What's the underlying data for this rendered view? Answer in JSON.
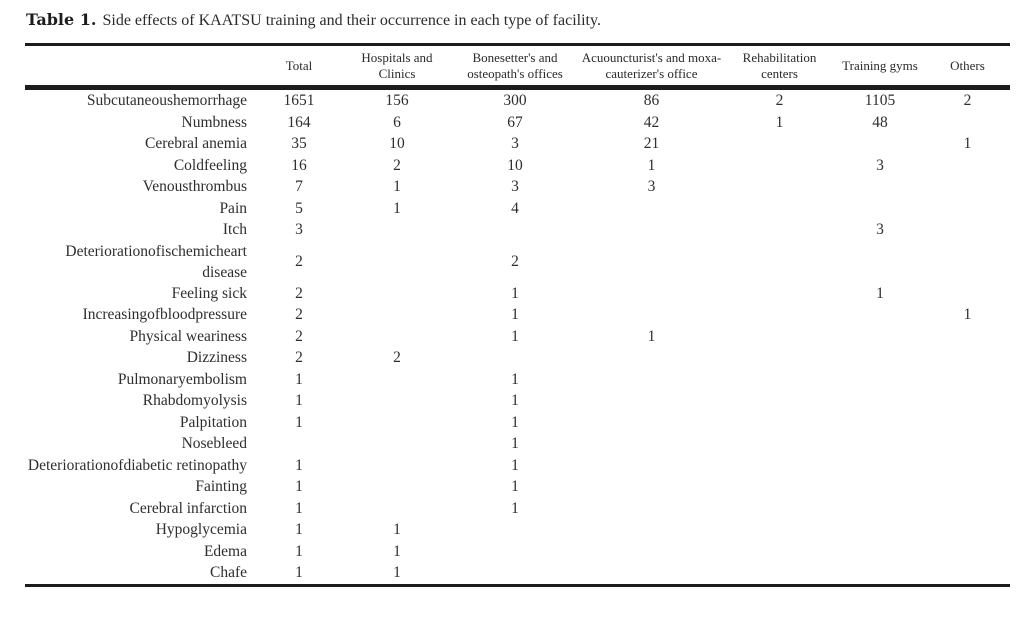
{
  "caption": {
    "label": "Table 1.",
    "text": "Side effects of KAATSU training and their occurrence in each type of facility."
  },
  "table": {
    "columns": [
      {
        "key": "side-effect",
        "label": ""
      },
      {
        "key": "total",
        "label": "Total"
      },
      {
        "key": "hospitals-clinics",
        "label": "Hospitals and Clinics"
      },
      {
        "key": "bonesetters-osteopaths",
        "label": "Bonesetter's and osteopath's offices"
      },
      {
        "key": "acupuncturists-moxa",
        "label": "Acuouncturist's and moxa-cauterizer's office"
      },
      {
        "key": "rehabilitation-centers",
        "label": "Rehabilitation centers"
      },
      {
        "key": "training-gyms",
        "label": "Training gyms"
      },
      {
        "key": "others",
        "label": "Others"
      }
    ],
    "rows": [
      {
        "label": "Subcutaneoushemorrhage",
        "values": [
          "1651",
          "156",
          "300",
          "86",
          "2",
          "1105",
          "2"
        ]
      },
      {
        "label": "Numbness",
        "values": [
          "164",
          "6",
          "67",
          "42",
          "1",
          "48",
          ""
        ]
      },
      {
        "label": "Cerebral anemia",
        "values": [
          "35",
          "10",
          "3",
          "21",
          "",
          "",
          "1"
        ]
      },
      {
        "label": "Coldfeeling",
        "values": [
          "16",
          "2",
          "10",
          "1",
          "",
          "3",
          ""
        ]
      },
      {
        "label": "Venousthrombus",
        "values": [
          "7",
          "1",
          "3",
          "3",
          "",
          "",
          ""
        ]
      },
      {
        "label": "Pain",
        "values": [
          "5",
          "1",
          "4",
          "",
          "",
          "",
          ""
        ]
      },
      {
        "label": "Itch",
        "values": [
          "3",
          "",
          "",
          "",
          "",
          "3",
          ""
        ]
      },
      {
        "label": "Deteriorationofischemicheart disease",
        "values": [
          "2",
          "",
          "2",
          "",
          "",
          "",
          ""
        ]
      },
      {
        "label": "Feeling sick",
        "values": [
          "2",
          "",
          "1",
          "",
          "",
          "1",
          ""
        ]
      },
      {
        "label": "Increasingofbloodpressure",
        "values": [
          "2",
          "",
          "1",
          "",
          "",
          "",
          "1"
        ]
      },
      {
        "label": "Physical weariness",
        "values": [
          "2",
          "",
          "1",
          "1",
          "",
          "",
          ""
        ]
      },
      {
        "label": "Dizziness",
        "values": [
          "2",
          "2",
          "",
          "",
          "",
          "",
          ""
        ]
      },
      {
        "label": "Pulmonaryembolism",
        "values": [
          "1",
          "",
          "1",
          "",
          "",
          "",
          ""
        ]
      },
      {
        "label": "Rhabdomyolysis",
        "values": [
          "1",
          "",
          "1",
          "",
          "",
          "",
          ""
        ]
      },
      {
        "label": "Palpitation",
        "values": [
          "1",
          "",
          "1",
          "",
          "",
          "",
          ""
        ]
      },
      {
        "label": "Nosebleed",
        "values": [
          "",
          "",
          "1",
          "",
          "",
          "",
          ""
        ]
      },
      {
        "label": "Deteriorationofdiabetic retinopathy",
        "values": [
          "1",
          "",
          "1",
          "",
          "",
          "",
          ""
        ]
      },
      {
        "label": "Fainting",
        "values": [
          "1",
          "",
          "1",
          "",
          "",
          "",
          ""
        ]
      },
      {
        "label": "Cerebral infarction",
        "values": [
          "1",
          "",
          "1",
          "",
          "",
          "",
          ""
        ]
      },
      {
        "label": "Hypoglycemia",
        "values": [
          "1",
          "1",
          "",
          "",
          "",
          "",
          ""
        ]
      },
      {
        "label": "Edema",
        "values": [
          "1",
          "1",
          "",
          "",
          "",
          "",
          ""
        ]
      },
      {
        "label": "Chafe",
        "values": [
          "1",
          "1",
          "",
          "",
          "",
          "",
          ""
        ]
      }
    ]
  },
  "colors": {
    "text": "#2e2e2e",
    "rule": "#1c1c1c",
    "background": "#ffffff"
  }
}
